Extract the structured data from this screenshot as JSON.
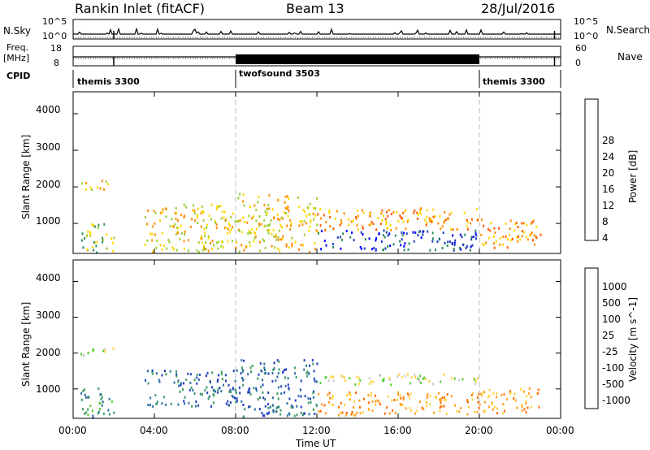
{
  "header": {
    "title": "Rankin Inlet (fitACF)",
    "beam": "Beam 13",
    "date": "28/Jul/2016"
  },
  "nsky": {
    "left_label": "N.Sky",
    "tick_top": "10^5",
    "tick_bottom": "10^0",
    "right_tick_top": "10^5",
    "right_tick_bottom": "10^0",
    "right_label": "N.Search"
  },
  "freq": {
    "left_label_line1": "Freq.",
    "left_label_line2": "[MHz]",
    "tick_top": "18",
    "tick_bottom": "8",
    "right_tick_top": "60",
    "right_tick_bottom": "0",
    "right_label": "Nave"
  },
  "cpid": {
    "label": "CPID",
    "segments": [
      {
        "name": "themis 3300",
        "start_hour": 0,
        "end_hour": 8
      },
      {
        "name": "twofsound 3503",
        "start_hour": 8,
        "end_hour": 20
      },
      {
        "name": "themis 3300",
        "start_hour": 20,
        "end_hour": 24
      }
    ]
  },
  "chart_data": [
    {
      "type": "heatmap",
      "quantity": "Power",
      "ylabel": "Slant Range [km]",
      "xlabel": "Time UT",
      "xlim": [
        0,
        24
      ],
      "ylim": [
        180,
        4600
      ],
      "x_ticks": [
        "00:00",
        "04:00",
        "08:00",
        "12:00",
        "16:00",
        "20:00",
        "00:00"
      ],
      "y_ticks": [
        1000,
        2000,
        3000,
        4000
      ],
      "colorbar": {
        "label": "Power [dB]",
        "ticks": [
          "28",
          "24",
          "20",
          "16",
          "12",
          "8",
          "4"
        ],
        "colors": [
          "#ff0000",
          "#ff5a00",
          "#ff8c00",
          "#ffd700",
          "#9acd32",
          "#2e8b57",
          "#1e3fbf",
          "#0000ff"
        ]
      },
      "features": [
        {
          "t": [
            0.3,
            2.0
          ],
          "r": [
            180,
            1000
          ],
          "level": 4
        },
        {
          "t": [
            0.3,
            2.0
          ],
          "r": [
            1900,
            2150
          ],
          "level": 3
        },
        {
          "t": [
            3.5,
            8.0
          ],
          "r": [
            200,
            1500
          ],
          "level": 3
        },
        {
          "t": [
            8.0,
            12.0
          ],
          "r": [
            200,
            1800
          ],
          "level": 3
        },
        {
          "t": [
            12.0,
            20.0
          ],
          "r": [
            250,
            800
          ],
          "level": 6
        },
        {
          "t": [
            12.0,
            20.0
          ],
          "r": [
            800,
            1400
          ],
          "level": 2
        },
        {
          "t": [
            20.0,
            23.0
          ],
          "r": [
            300,
            1100
          ],
          "level": 2
        }
      ]
    },
    {
      "type": "heatmap",
      "quantity": "Velocity",
      "ylabel": "Slant Range [km]",
      "xlabel": "Time UT",
      "xlim": [
        0,
        24
      ],
      "ylim": [
        180,
        4600
      ],
      "x_ticks": [
        "00:00",
        "04:00",
        "08:00",
        "12:00",
        "16:00",
        "20:00",
        "00:00"
      ],
      "y_ticks": [
        1000,
        2000,
        3000,
        4000
      ],
      "colorbar": {
        "label": "Velocity [m s^-1]",
        "ticks": [
          "1000",
          "500",
          "100",
          "25",
          "-25",
          "-100",
          "-500",
          "-1000"
        ],
        "colors": [
          "#1e3fbf",
          "#2e6fa0",
          "#3a9a60",
          "#55cc33",
          "#c8c8c8",
          "#ffd23c",
          "#ff9f1a",
          "#ff6a00",
          "#ff0000"
        ]
      },
      "features": [
        {
          "t": [
            0.3,
            2.0
          ],
          "r": [
            180,
            1000
          ],
          "level": 2
        },
        {
          "t": [
            0.3,
            2.0
          ],
          "r": [
            1900,
            2150
          ],
          "level": 4
        },
        {
          "t": [
            3.5,
            8.0
          ],
          "r": [
            500,
            1500
          ],
          "level": 1
        },
        {
          "t": [
            8.0,
            12.0
          ],
          "r": [
            200,
            1800
          ],
          "level": 1
        },
        {
          "t": [
            12.0,
            20.0
          ],
          "r": [
            250,
            900
          ],
          "level": 6
        },
        {
          "t": [
            12.0,
            20.0
          ],
          "r": [
            1100,
            1400
          ],
          "level": 4
        },
        {
          "t": [
            20.0,
            23.0
          ],
          "r": [
            300,
            1000
          ],
          "level": 6
        }
      ]
    }
  ]
}
